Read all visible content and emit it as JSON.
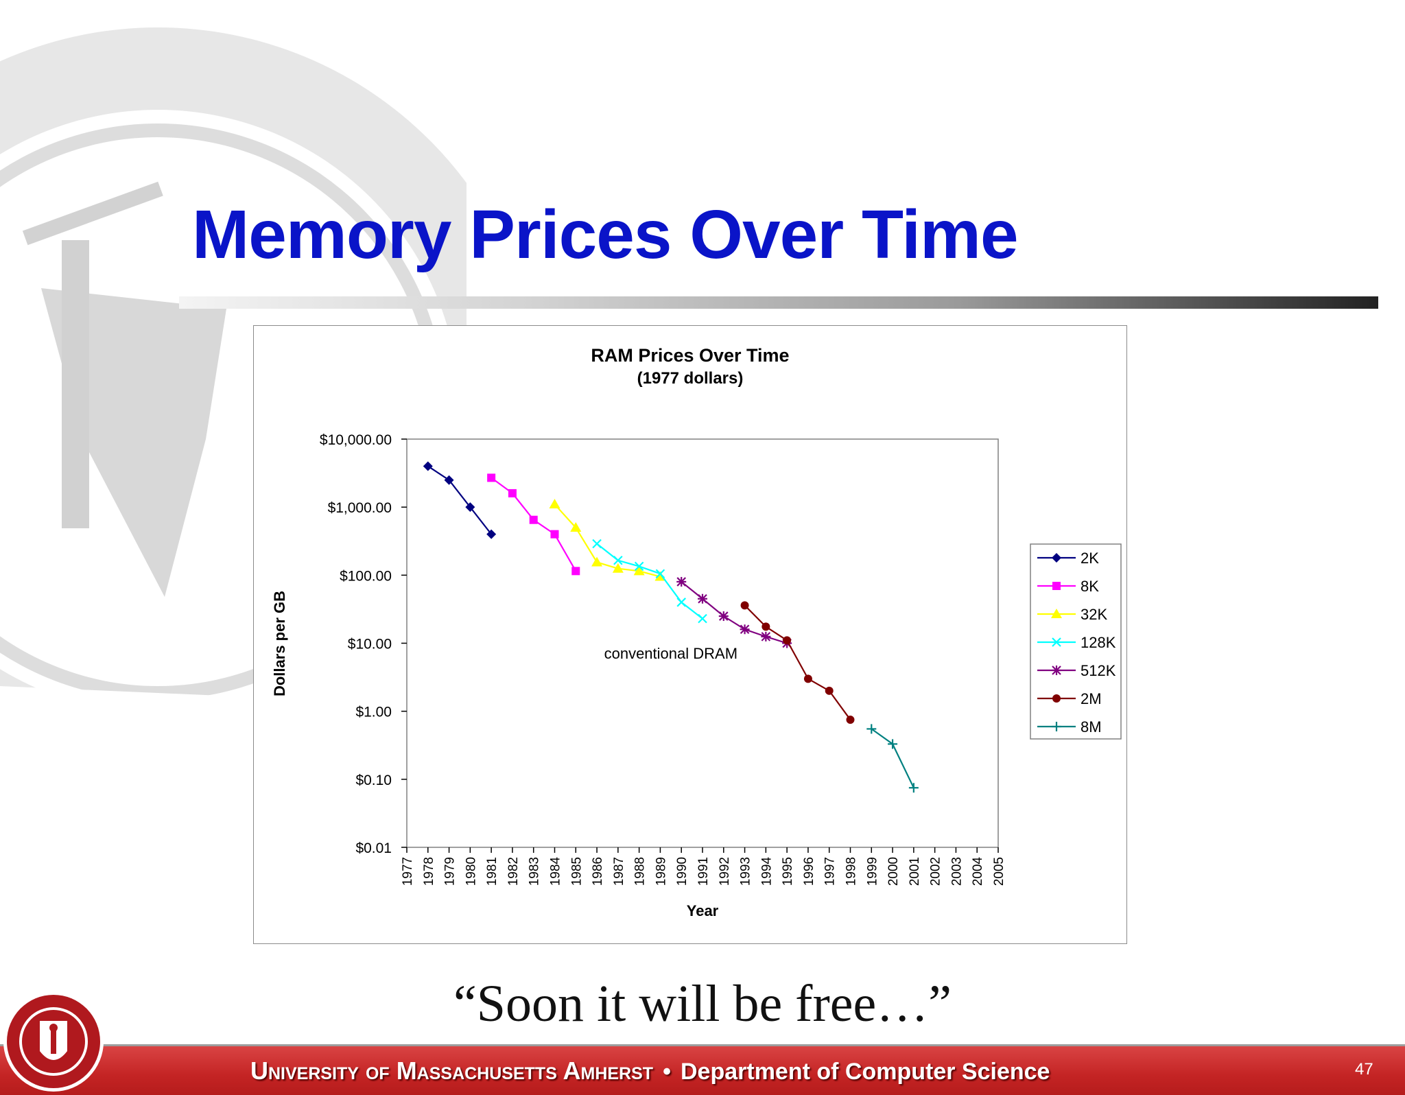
{
  "slide": {
    "title": "Memory Prices Over Time",
    "quote": "“Soon it will be free…”",
    "footer": {
      "university": "University of Massachusetts Amherst",
      "separator": "•",
      "department": "Department of Computer Science"
    },
    "page_number": "47",
    "colors": {
      "title": "#0a14c8",
      "footer_bar": "#c42424",
      "watermark": "#dedede"
    }
  },
  "chart_data": {
    "type": "line",
    "title": "RAM Prices Over Time",
    "subtitle": "(1977 dollars)",
    "xlabel": "Year",
    "ylabel": "Dollars per GB",
    "yscale": "log",
    "ylim": [
      0.01,
      10000
    ],
    "y_tick_values": [
      0.01,
      0.1,
      1,
      10,
      100,
      1000,
      10000
    ],
    "y_ticks": [
      "$0.01",
      "$0.10",
      "$1.00",
      "$10.00",
      "$100.00",
      "$1,000.00",
      "$10,000.00"
    ],
    "x_range": [
      1977,
      2005
    ],
    "x_ticks": [
      "1977",
      "1978",
      "1979",
      "1980",
      "1981",
      "1982",
      "1983",
      "1984",
      "1985",
      "1986",
      "1987",
      "1988",
      "1989",
      "1990",
      "1991",
      "1992",
      "1993",
      "1994",
      "1995",
      "1996",
      "1997",
      "1998",
      "1999",
      "2000",
      "2001",
      "2002",
      "2003",
      "2004",
      "2005"
    ],
    "annotation": {
      "text": "conventional DRAM",
      "x": 1989.5,
      "y": 7
    },
    "legend": "right",
    "grid": false,
    "series": [
      {
        "name": "2K",
        "color": "#000080",
        "marker": "diamond",
        "x": [
          1978,
          1979,
          1980,
          1981
        ],
        "y": [
          4000,
          2500,
          1000,
          400
        ]
      },
      {
        "name": "8K",
        "color": "#ff00ff",
        "marker": "square",
        "x": [
          1981,
          1982,
          1983,
          1984,
          1985
        ],
        "y": [
          2700,
          1600,
          650,
          400,
          115
        ]
      },
      {
        "name": "32K",
        "color": "#ffff00",
        "marker": "triangle",
        "x": [
          1984,
          1985,
          1986,
          1987,
          1988,
          1989
        ],
        "y": [
          1100,
          500,
          155,
          125,
          115,
          95
        ]
      },
      {
        "name": "128K",
        "color": "#00ffff",
        "marker": "x",
        "x": [
          1986,
          1987,
          1988,
          1989,
          1990,
          1991
        ],
        "y": [
          290,
          165,
          135,
          105,
          40,
          23
        ]
      },
      {
        "name": "512K",
        "color": "#800080",
        "marker": "star",
        "x": [
          1990,
          1991,
          1992,
          1993,
          1994,
          1995
        ],
        "y": [
          80,
          45,
          25,
          16,
          12.5,
          10
        ]
      },
      {
        "name": "2M",
        "color": "#800000",
        "marker": "circle",
        "x": [
          1993,
          1994,
          1995,
          1996,
          1997,
          1998
        ],
        "y": [
          36,
          17.5,
          11,
          3,
          2,
          0.75
        ]
      },
      {
        "name": "8M",
        "color": "#008080",
        "marker": "plus",
        "x": [
          1999,
          2000,
          2001
        ],
        "y": [
          0.55,
          0.33,
          0.075
        ]
      }
    ]
  }
}
